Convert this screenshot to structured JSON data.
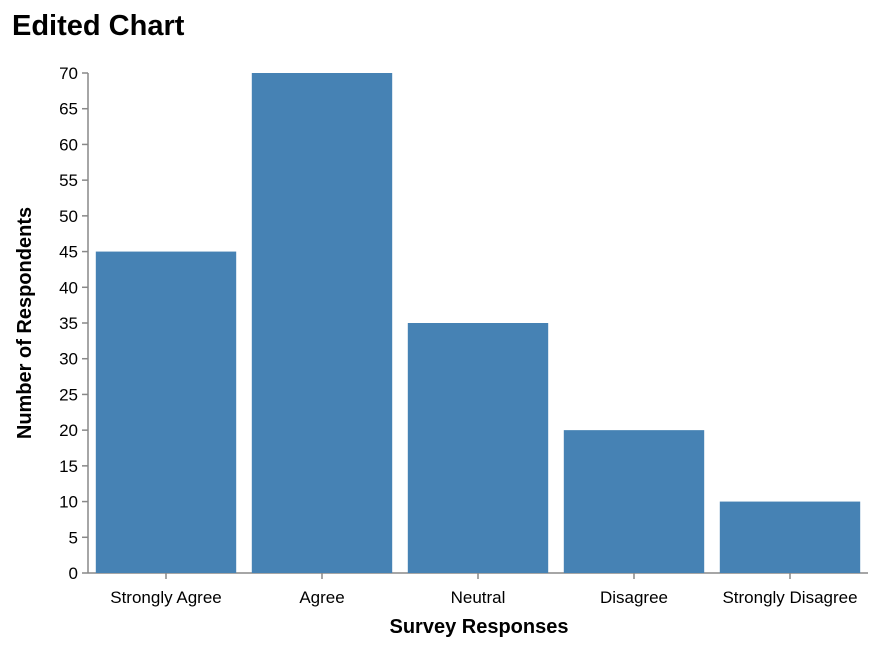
{
  "chart_data": {
    "type": "bar",
    "title": "Edited Chart",
    "xlabel": "Survey Responses",
    "ylabel": "Number of Respondents",
    "categories": [
      "Strongly Agree",
      "Agree",
      "Neutral",
      "Disagree",
      "Strongly Disagree"
    ],
    "values": [
      45,
      70,
      35,
      20,
      10
    ],
    "ylim": [
      0,
      70
    ],
    "yticks": [
      0,
      5,
      10,
      15,
      20,
      25,
      30,
      35,
      40,
      45,
      50,
      55,
      60,
      65,
      70
    ],
    "bar_color": "#4682b4",
    "grid": false
  }
}
